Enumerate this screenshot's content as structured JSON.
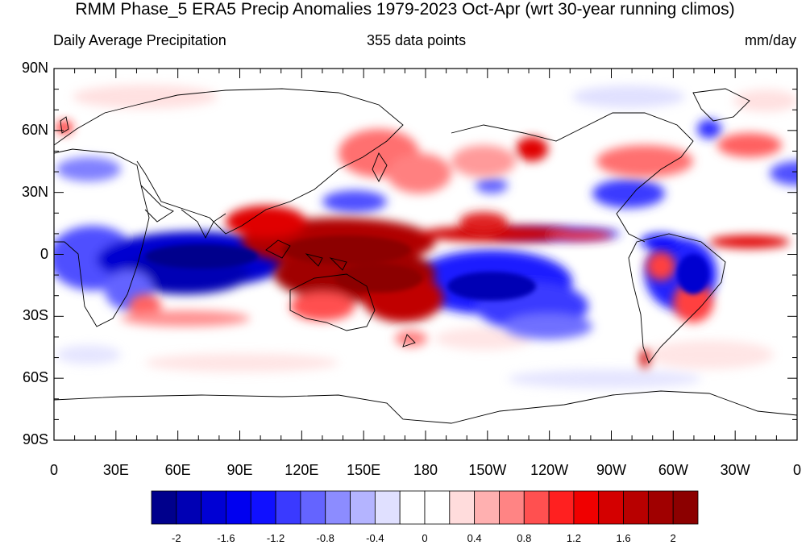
{
  "title": "RMM Phase_5 ERA5 Precip Anomalies 1979-2023 Oct-Apr (wrt 30-year running climos)",
  "subtitle_left": "Daily Average Precipitation",
  "subtitle_center": "355 data points",
  "subtitle_right": "mm/day",
  "y_axis_labels": [
    "90N",
    "60N",
    "30N",
    "0",
    "30S",
    "60S",
    "90S"
  ],
  "x_axis_labels": [
    "0",
    "30E",
    "60E",
    "90E",
    "120E",
    "150E",
    "180",
    "150W",
    "120W",
    "90W",
    "60W",
    "30W",
    "0"
  ],
  "colorbar": {
    "labels": [
      "-2",
      "-1.6",
      "-1.2",
      "-0.8",
      "-0.4",
      "0",
      "0.4",
      "0.8",
      "1.2",
      "1.6",
      "2"
    ],
    "colors": [
      "#00008c",
      "#0000b4",
      "#0000d4",
      "#0000f0",
      "#1010ff",
      "#3a3aff",
      "#6464ff",
      "#8c8cff",
      "#b4b4ff",
      "#e0e0ff",
      "#ffffff",
      "#ffffff",
      "#ffdcdc",
      "#ffb0b0",
      "#ff8484",
      "#ff5050",
      "#ff2020",
      "#f00000",
      "#d40000",
      "#b80000",
      "#a00000",
      "#8c0000"
    ]
  },
  "map_data": {
    "type": "filled contour map",
    "variable": "precipitation anomaly",
    "units": "mm/day",
    "lon_range": [
      0,
      360
    ],
    "lat_range": [
      -90,
      90
    ],
    "features": [
      {
        "region": "Maritime Continent / West Pacific",
        "sign": "positive",
        "strength": "strong"
      },
      {
        "region": "Indian Ocean equatorial band",
        "sign": "negative",
        "strength": "strong"
      },
      {
        "region": "South Pacific subtropics",
        "sign": "negative",
        "strength": "moderate"
      },
      {
        "region": "ITCZ central-east Pacific",
        "sign": "positive",
        "strength": "moderate"
      },
      {
        "region": "Amazon / South America",
        "sign": "negative",
        "strength": "moderate"
      },
      {
        "region": "North Pacific storm track",
        "sign": "positive",
        "strength": "moderate"
      }
    ]
  }
}
